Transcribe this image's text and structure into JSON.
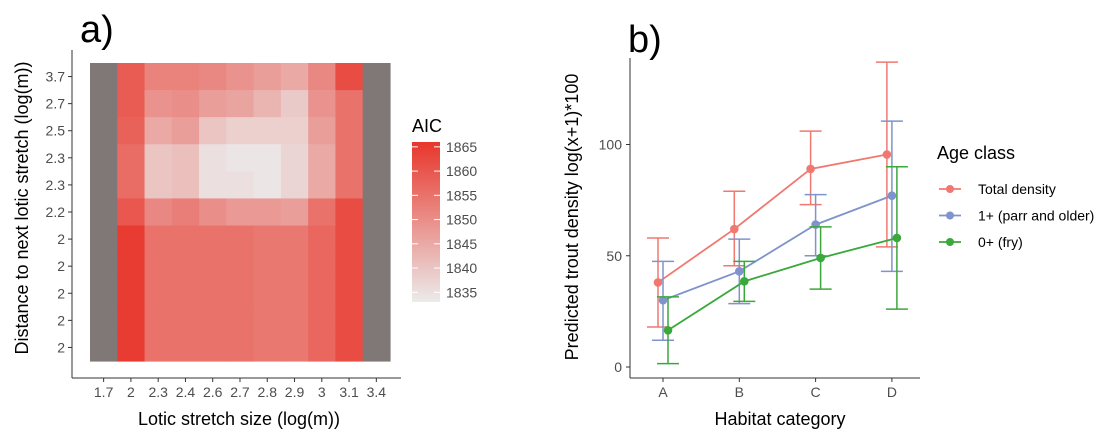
{
  "chart_data": [
    {
      "panel_label": "a)",
      "type": "heatmap",
      "xlabel": "Lotic stretch size (log(m))",
      "ylabel": "Distance to next lotic stretch (log(m))",
      "x_ticks": [
        "1.7",
        "2",
        "2.3",
        "2.4",
        "2.6",
        "2.7",
        "2.8",
        "2.9",
        "3",
        "3.1",
        "3.4"
      ],
      "y_ticks_top_to_bottom": [
        "3.7",
        "2.7",
        "2.5",
        "2.3",
        "2.3",
        "2.2",
        "2",
        "2",
        "2",
        "2",
        "2"
      ],
      "legend": {
        "title": "AIC",
        "ticks": [
          "1865",
          "1860",
          "1855",
          "1850",
          "1845",
          "1840",
          "1835"
        ],
        "min": 1833,
        "max": 1866,
        "color_low": "#ebebeb",
        "color_high": "#e8362b"
      },
      "missing_color": "#807876",
      "values_top_to_bottom": [
        [
          null,
          1859,
          1852,
          1852,
          1851,
          1849,
          1847,
          1845,
          1851,
          1862,
          null
        ],
        [
          null,
          1859,
          1849,
          1850,
          1847,
          1846,
          1843,
          1839,
          1849,
          1855,
          null
        ],
        [
          null,
          1858,
          1845,
          1847,
          1840,
          1838,
          1838,
          1838,
          1847,
          1855,
          null
        ],
        [
          null,
          1856,
          1840,
          1841,
          1835,
          1834,
          1834,
          1837,
          1845,
          1855,
          null
        ],
        [
          null,
          1856,
          1840,
          1841,
          1835,
          1835,
          1834,
          1837,
          1845,
          1855,
          null
        ],
        [
          null,
          1860,
          1851,
          1853,
          1850,
          1848,
          1848,
          1847,
          1855,
          1862,
          null
        ],
        [
          null,
          1865,
          1855,
          1855,
          1855,
          1855,
          1854,
          1854,
          1857,
          1862,
          null
        ],
        [
          null,
          1865,
          1855,
          1855,
          1855,
          1855,
          1854,
          1854,
          1857,
          1862,
          null
        ],
        [
          null,
          1865,
          1855,
          1855,
          1855,
          1855,
          1854,
          1854,
          1857,
          1862,
          null
        ],
        [
          null,
          1865,
          1855,
          1855,
          1855,
          1855,
          1854,
          1854,
          1857,
          1862,
          null
        ],
        [
          null,
          1865,
          1855,
          1855,
          1855,
          1855,
          1854,
          1854,
          1857,
          1862,
          null
        ]
      ]
    },
    {
      "panel_label": "b)",
      "type": "line",
      "xlabel": "Habitat category",
      "ylabel": "Predicted trout density log(x+1)*100",
      "categories": [
        "A",
        "B",
        "C",
        "D"
      ],
      "y_ticks": [
        0,
        50,
        100
      ],
      "ylim": [
        -4,
        141
      ],
      "legend": {
        "title": "Age class"
      },
      "series": [
        {
          "name": "Total density",
          "color": "#f07870",
          "values": [
            38,
            62,
            89,
            95.5
          ],
          "lower": [
            18,
            45.5,
            73,
            54
          ],
          "upper": [
            58,
            79,
            106,
            137
          ]
        },
        {
          "name": "1+ (parr and older)",
          "color": "#7f93cc",
          "values": [
            30,
            43,
            64,
            77
          ],
          "lower": [
            12,
            28.5,
            50,
            43
          ],
          "upper": [
            47.5,
            57.5,
            77.5,
            110.5
          ]
        },
        {
          "name": "0+ (fry)",
          "color": "#3aa83a",
          "values": [
            16.5,
            38.5,
            49,
            58
          ],
          "lower": [
            1.5,
            29.5,
            35,
            26
          ],
          "upper": [
            31.5,
            47.5,
            63,
            90
          ]
        }
      ]
    }
  ]
}
